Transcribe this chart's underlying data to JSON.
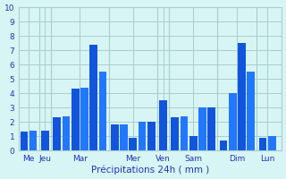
{
  "bar_data": [
    [
      1.3,
      1.4
    ],
    [
      1.4
    ],
    [
      2.3,
      2.4,
      4.3,
      4.4,
      7.4,
      5.5
    ],
    [
      1.8,
      1.8,
      0.9,
      2.0,
      2.0
    ],
    [
      3.5
    ],
    [
      2.3,
      2.4,
      1.0,
      3.0,
      3.0
    ],
    [
      0.7,
      4.0,
      7.5,
      5.5
    ],
    [
      0.9,
      1.0
    ]
  ],
  "day_labels": [
    "Me",
    "Jeu",
    "Mar",
    "Mer",
    "Ven",
    "Sam",
    "Dim",
    "Lun"
  ],
  "bar_color1": "#1155dd",
  "bar_color2": "#2277ff",
  "background_color": "#d8f5f5",
  "grid_color": "#aacccc",
  "text_color": "#2233bb",
  "xlabel": "Précipitations 24h ( mm )",
  "ylim": [
    0,
    10
  ],
  "yticks": [
    0,
    1,
    2,
    3,
    4,
    5,
    6,
    7,
    8,
    9,
    10
  ],
  "figsize": [
    3.2,
    2.0
  ],
  "dpi": 100
}
